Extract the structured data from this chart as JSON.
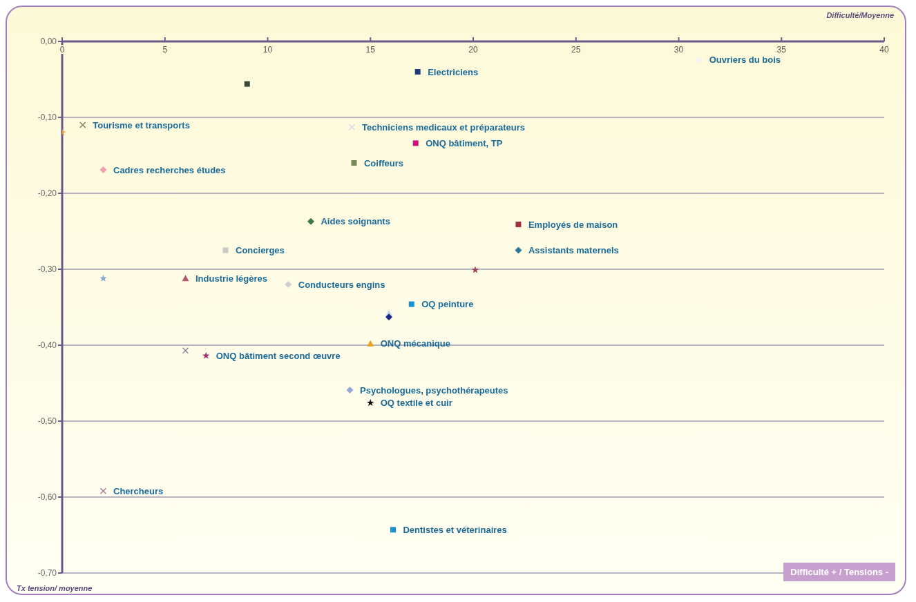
{
  "chart_data": {
    "type": "scatter",
    "xlabel": "Difficulté/Moyenne",
    "ylabel": "Tx tension/ moyenne",
    "annotations": [
      "Difficulté + / Tensions -"
    ],
    "xlim": [
      0,
      40
    ],
    "xticks": [
      0,
      5,
      10,
      15,
      20,
      25,
      30,
      35,
      40
    ],
    "ylim": [
      -0.7,
      0
    ],
    "yticks": [
      {
        "value": 0,
        "label": "0,00"
      },
      {
        "value": -0.1,
        "label": "-0,10"
      },
      {
        "value": -0.2,
        "label": "-0,20"
      },
      {
        "value": -0.3,
        "label": "-0,30"
      },
      {
        "value": -0.4,
        "label": "-0,40"
      },
      {
        "value": -0.5,
        "label": "-0,50"
      },
      {
        "value": -0.6,
        "label": "-0,60"
      },
      {
        "value": -0.7,
        "label": "-0,70"
      }
    ],
    "grid": "y",
    "series": [
      {
        "name": "Electriciens",
        "color": "#1f3a7a",
        "marker": "square",
        "x": [
          17.3
        ],
        "values": [
          -0.04
        ]
      },
      {
        "color": "#3a4a3a",
        "marker": "square",
        "x": [
          9
        ],
        "values": [
          -0.056
        ]
      },
      {
        "name": "Tourisme et transports",
        "color": "#8a7a5a",
        "marker": "cross",
        "x": [
          1
        ],
        "values": [
          -0.11
        ]
      },
      {
        "color": "#f0a030",
        "marker": "star",
        "x": [
          0
        ],
        "values": [
          -0.12
        ]
      },
      {
        "name": "Techniciens medicaux et préparateurs",
        "color": "#d8d8e8",
        "marker": "cross",
        "x": [
          14.1
        ],
        "values": [
          -0.113
        ]
      },
      {
        "name": "ONQ  bâtiment, TP",
        "color": "#d0107a",
        "marker": "square",
        "x": [
          17.2
        ],
        "values": [
          -0.134
        ]
      },
      {
        "name": "Coiffeurs",
        "color": "#7a8a5a",
        "marker": "square",
        "x": [
          14.2
        ],
        "values": [
          -0.16
        ]
      },
      {
        "name": "Cadres recherches études",
        "color": "#f0a0b0",
        "marker": "diamond",
        "x": [
          2
        ],
        "values": [
          -0.169
        ]
      },
      {
        "name": "Aides soignants",
        "color": "#3a7a4a",
        "marker": "diamond",
        "x": [
          12.1
        ],
        "values": [
          -0.237
        ]
      },
      {
        "name": "Employés de maison",
        "color": "#a03040",
        "marker": "square",
        "x": [
          22.2
        ],
        "values": [
          -0.241
        ]
      },
      {
        "name": "Concierges",
        "color": "#c8c8c8",
        "marker": "square",
        "x": [
          7.95
        ],
        "values": [
          -0.275
        ]
      },
      {
        "name": "Assistants maternels",
        "color": "#2a7a9a",
        "marker": "diamond",
        "x": [
          22.2
        ],
        "values": [
          -0.275
        ]
      },
      {
        "name": "Ouvriers du bois",
        "color": "#f4f4f4",
        "marker": "circle",
        "x": [
          31
        ],
        "values": [
          -0.024
        ]
      },
      {
        "color": "#8aa8d8",
        "marker": "star",
        "x": [
          2
        ],
        "values": [
          -0.312
        ]
      },
      {
        "name": "Industrie légères",
        "color": "#b05a6a",
        "marker": "triangle",
        "x": [
          6
        ],
        "values": [
          -0.312
        ]
      },
      {
        "name": "Conducteurs engins",
        "color": "#d0d0d0",
        "marker": "diamond",
        "x": [
          11
        ],
        "values": [
          -0.32
        ]
      },
      {
        "color": "#a04050",
        "marker": "star",
        "x": [
          20.1
        ],
        "values": [
          -0.301
        ]
      },
      {
        "name": "OQ peinture",
        "color": "#1a90d0",
        "marker": "square",
        "x": [
          17
        ],
        "values": [
          -0.346
        ]
      },
      {
        "color": "#c8d8f0",
        "marker": "triangle",
        "x": [
          15.9
        ],
        "values": [
          -0.358
        ]
      },
      {
        "color": "#1a2a8a",
        "marker": "diamond",
        "x": [
          15.9
        ],
        "values": [
          -0.363
        ]
      },
      {
        "name": "ONQ mécanique",
        "color": "#f0a020",
        "marker": "triangle",
        "x": [
          15
        ],
        "values": [
          -0.398
        ]
      },
      {
        "color": "#8a8a9a",
        "marker": "cross",
        "x": [
          6
        ],
        "values": [
          -0.407
        ]
      },
      {
        "name": "ONQ bâtiment second œuvre",
        "color": "#a03070",
        "marker": "star",
        "x": [
          7
        ],
        "values": [
          -0.414
        ]
      },
      {
        "name": "Psychologues, psychothérapeutes",
        "color": "#98a8d8",
        "marker": "diamond",
        "x": [
          14
        ],
        "values": [
          -0.459
        ]
      },
      {
        "name": "OQ textile et cuir",
        "color": "#101010",
        "marker": "star",
        "x": [
          15
        ],
        "values": [
          -0.476
        ]
      },
      {
        "name": "Chercheurs",
        "color": "#b07a9a",
        "marker": "cross",
        "x": [
          2
        ],
        "values": [
          -0.592
        ]
      },
      {
        "name": "Dentistes et véterinaires",
        "color": "#1a90d0",
        "marker": "square",
        "x": [
          16.1
        ],
        "values": [
          -0.643
        ]
      }
    ]
  }
}
